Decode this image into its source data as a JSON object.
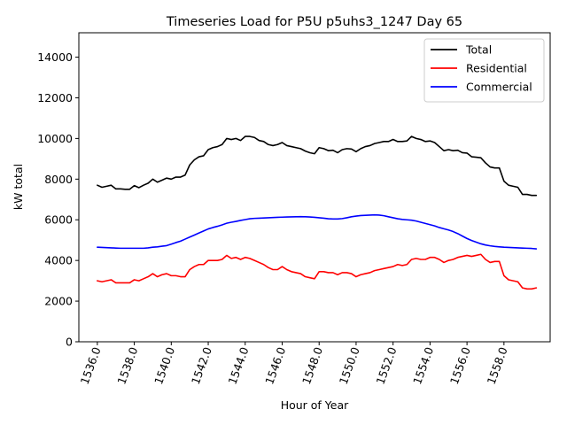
{
  "chart_data": {
    "type": "line",
    "title": "Timeseries Load for P5U p5uhs3_1247  Day 65",
    "xlabel": "Hour of Year",
    "ylabel": "kW total",
    "xlim": [
      1535.0,
      1560.5
    ],
    "ylim": [
      0,
      15200
    ],
    "xticks": [
      1536.0,
      1538.0,
      1540.0,
      1542.0,
      1544.0,
      1546.0,
      1548.0,
      1550.0,
      1552.0,
      1554.0,
      1556.0,
      1558.0
    ],
    "xtick_labels": [
      "1536.0",
      "1538.0",
      "1540.0",
      "1542.0",
      "1544.0",
      "1546.0",
      "1548.0",
      "1550.0",
      "1552.0",
      "1554.0",
      "1556.0",
      "1558.0"
    ],
    "yticks": [
      0,
      2000,
      4000,
      6000,
      8000,
      10000,
      12000,
      14000
    ],
    "ytick_labels": [
      "0",
      "2000",
      "4000",
      "6000",
      "8000",
      "10000",
      "12000",
      "14000"
    ],
    "grid": false,
    "legend_position": "top-right",
    "x_start": 1536.0,
    "x_step": 0.25,
    "series": [
      {
        "name": "Total",
        "color": "#000000",
        "values": [
          7700,
          7600,
          7650,
          7700,
          7520,
          7520,
          7500,
          7500,
          7680,
          7580,
          7700,
          7800,
          8000,
          7850,
          7950,
          8050,
          8000,
          8100,
          8100,
          8200,
          8700,
          8950,
          9100,
          9150,
          9450,
          9550,
          9600,
          9700,
          10000,
          9950,
          10000,
          9900,
          10100,
          10100,
          10050,
          9900,
          9850,
          9700,
          9650,
          9700,
          9800,
          9650,
          9600,
          9550,
          9500,
          9380,
          9300,
          9250,
          9550,
          9500,
          9400,
          9420,
          9300,
          9450,
          9500,
          9480,
          9350,
          9500,
          9600,
          9650,
          9750,
          9800,
          9850,
          9850,
          9950,
          9850,
          9850,
          9880,
          10100,
          10000,
          9950,
          9850,
          9880,
          9800,
          9600,
          9400,
          9450,
          9400,
          9420,
          9300,
          9280,
          9100,
          9080,
          9050,
          8800,
          8600,
          8550,
          8550,
          7900,
          7700,
          7650,
          7600,
          7250,
          7250,
          7200,
          7200
        ]
      },
      {
        "name": "Residential",
        "color": "#ff0000",
        "values": [
          3000,
          2950,
          3000,
          3050,
          2900,
          2900,
          2900,
          2900,
          3050,
          3000,
          3100,
          3200,
          3350,
          3200,
          3300,
          3350,
          3250,
          3250,
          3200,
          3200,
          3550,
          3700,
          3800,
          3800,
          4000,
          4000,
          4000,
          4050,
          4250,
          4100,
          4150,
          4050,
          4150,
          4100,
          4000,
          3900,
          3800,
          3650,
          3550,
          3550,
          3700,
          3550,
          3450,
          3400,
          3350,
          3200,
          3150,
          3100,
          3450,
          3450,
          3400,
          3400,
          3300,
          3400,
          3400,
          3350,
          3200,
          3300,
          3350,
          3400,
          3500,
          3550,
          3600,
          3650,
          3700,
          3800,
          3750,
          3800,
          4050,
          4100,
          4050,
          4050,
          4150,
          4150,
          4050,
          3900,
          4000,
          4050,
          4150,
          4200,
          4250,
          4200,
          4250,
          4300,
          4050,
          3900,
          3950,
          3950,
          3250,
          3050,
          3000,
          2950,
          2650,
          2600,
          2600,
          2650
        ]
      },
      {
        "name": "Commercial",
        "color": "#0000ff",
        "values": [
          4650,
          4640,
          4630,
          4620,
          4610,
          4600,
          4600,
          4600,
          4600,
          4600,
          4600,
          4620,
          4650,
          4670,
          4700,
          4730,
          4800,
          4880,
          4950,
          5050,
          5150,
          5250,
          5350,
          5450,
          5550,
          5620,
          5680,
          5750,
          5830,
          5880,
          5920,
          5970,
          6010,
          6050,
          6070,
          6080,
          6090,
          6100,
          6110,
          6120,
          6130,
          6140,
          6145,
          6150,
          6155,
          6150,
          6140,
          6120,
          6100,
          6080,
          6050,
          6040,
          6040,
          6060,
          6100,
          6150,
          6180,
          6210,
          6220,
          6230,
          6240,
          6230,
          6200,
          6150,
          6100,
          6050,
          6020,
          6000,
          5980,
          5940,
          5880,
          5820,
          5760,
          5700,
          5620,
          5560,
          5500,
          5420,
          5320,
          5200,
          5080,
          4980,
          4900,
          4820,
          4760,
          4720,
          4690,
          4670,
          4650,
          4640,
          4630,
          4620,
          4610,
          4600,
          4590,
          4570
        ]
      }
    ]
  }
}
